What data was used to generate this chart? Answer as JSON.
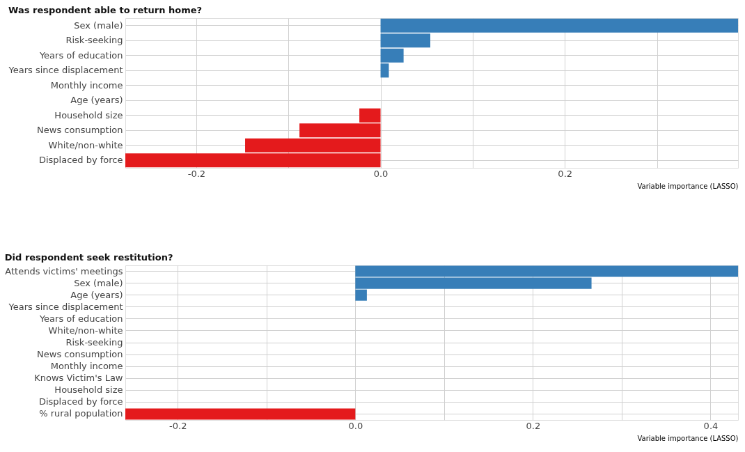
{
  "chart_data": [
    {
      "type": "bar",
      "orientation": "horizontal",
      "title": "Was respondent able to return home?",
      "xlabel": "Variable importance (LASSO)",
      "categories": [
        "Sex (male)",
        "Risk-seeking",
        "Years of education",
        "Years since displacement",
        "Monthly income",
        "Age (years)",
        "Household size",
        "News consumption",
        "White/non-white",
        "Displaced by force"
      ],
      "values": [
        0.388,
        0.054,
        0.025,
        0.009,
        0,
        0,
        -0.023,
        -0.088,
        -0.147,
        -0.277
      ],
      "colors": [
        "#377eb8",
        "#377eb8",
        "#377eb8",
        "#377eb8",
        "#377eb8",
        "#377eb8",
        "#e41a1c",
        "#e41a1c",
        "#e41a1c",
        "#e41a1c"
      ],
      "xlim": [
        -0.277,
        0.388
      ],
      "xticks": [
        {
          "value": -0.2,
          "label": "-0.2"
        },
        {
          "value": -0.1,
          "label": null
        },
        {
          "value": 0.0,
          "label": "0.0"
        },
        {
          "value": 0.1,
          "label": null
        },
        {
          "value": 0.2,
          "label": "0.2"
        },
        {
          "value": 0.3,
          "label": null
        }
      ],
      "grid": true
    },
    {
      "type": "bar",
      "orientation": "horizontal",
      "title": "Did respondent seek restitution?",
      "xlabel": "Variable importance (LASSO)",
      "categories": [
        "Attends victims' meetings",
        "Sex (male)",
        "Age (years)",
        "Years since displacement",
        "Years of education",
        "White/non-white",
        "Risk-seeking",
        "News consumption",
        "Monthly income",
        "Knows Victim's Law",
        "Household size",
        "Displaced by force",
        "% rural population"
      ],
      "values": [
        0.431,
        0.266,
        0.013,
        0,
        0,
        0,
        0,
        0,
        0,
        0,
        0,
        0,
        -0.259
      ],
      "colors": [
        "#377eb8",
        "#377eb8",
        "#377eb8",
        "#377eb8",
        "#377eb8",
        "#377eb8",
        "#377eb8",
        "#377eb8",
        "#377eb8",
        "#377eb8",
        "#377eb8",
        "#377eb8",
        "#e41a1c"
      ],
      "xlim": [
        -0.259,
        0.431
      ],
      "xticks": [
        {
          "value": -0.2,
          "label": "-0.2"
        },
        {
          "value": -0.1,
          "label": null
        },
        {
          "value": 0.0,
          "label": "0.0"
        },
        {
          "value": 0.1,
          "label": null
        },
        {
          "value": 0.2,
          "label": "0.2"
        },
        {
          "value": 0.3,
          "label": null
        },
        {
          "value": 0.4,
          "label": "0.4"
        }
      ],
      "grid": true
    }
  ]
}
